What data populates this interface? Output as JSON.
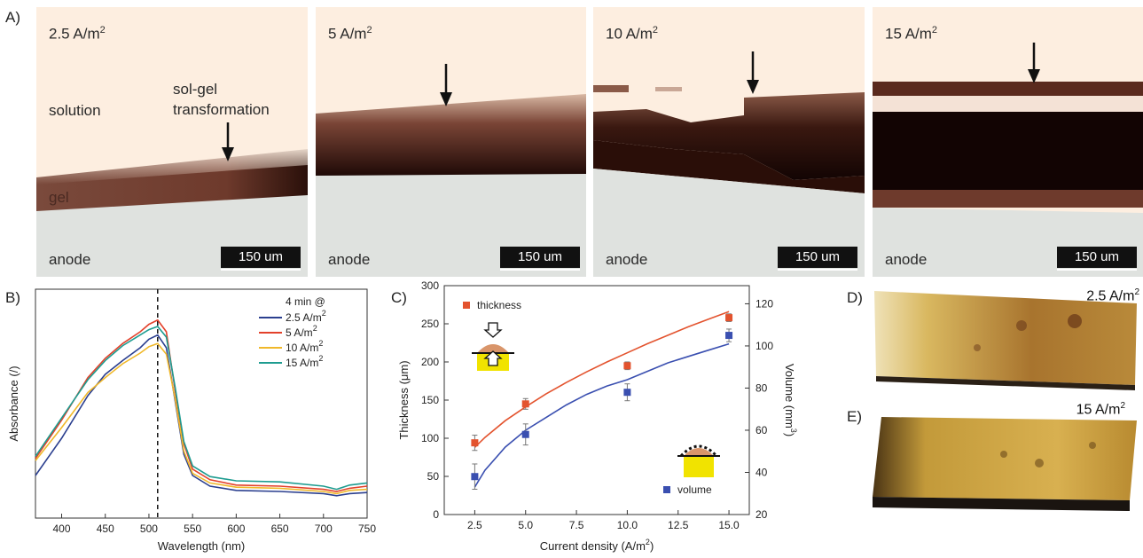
{
  "panels": {
    "A": {
      "letter": "A)",
      "micrographs": [
        {
          "label_main": "2.5 A/m",
          "label_sup": "2",
          "solution": "solution",
          "gel": "gel",
          "anode": "anode",
          "annotation_line1": "sol-gel",
          "annotation_line2": "transformation",
          "scale": "150 um"
        },
        {
          "label_main": "5 A/m",
          "label_sup": "2",
          "anode": "anode",
          "scale": "150 um"
        },
        {
          "label_main": "10 A/m",
          "label_sup": "2",
          "anode": "anode",
          "scale": "150 um"
        },
        {
          "label_main": "15 A/m",
          "label_sup": "2",
          "anode": "anode",
          "scale": "150 um"
        }
      ]
    },
    "B": {
      "letter": "B)"
    },
    "C": {
      "letter": "C)"
    },
    "D": {
      "letter": "D)",
      "label_main": "2.5 A/m",
      "label_sup": "2"
    },
    "E": {
      "letter": "E)",
      "label_main": "15 A/m",
      "label_sup": "2"
    }
  },
  "chart_data": [
    {
      "type": "line",
      "xlabel": "Wavelength (nm)",
      "ylabel": "Absorbance (/)",
      "xlim": [
        370,
        750
      ],
      "xticks": [
        400,
        450,
        500,
        550,
        600,
        650,
        700,
        750
      ],
      "y_ticks_shown": false,
      "vline_x": 510,
      "legend_title": "4 min @",
      "legend_position": "top-right",
      "x": [
        370,
        400,
        430,
        450,
        470,
        490,
        500,
        510,
        520,
        530,
        540,
        550,
        570,
        600,
        650,
        700,
        715,
        730,
        750
      ],
      "series": [
        {
          "name": "2.5 A/m",
          "name_sup": "2",
          "color": "#2b3f8f",
          "values": [
            0.1,
            0.45,
            0.85,
            1.05,
            1.18,
            1.3,
            1.38,
            1.42,
            1.3,
            0.8,
            0.3,
            0.1,
            0.0,
            -0.04,
            -0.05,
            -0.07,
            -0.09,
            -0.07,
            -0.06
          ]
        },
        {
          "name": "5 A/m",
          "name_sup": "2",
          "color": "#e3412b",
          "values": [
            0.26,
            0.62,
            1.02,
            1.2,
            1.34,
            1.45,
            1.52,
            1.56,
            1.45,
            0.9,
            0.4,
            0.16,
            0.06,
            0.01,
            0.0,
            -0.03,
            -0.05,
            -0.02,
            0.0
          ]
        },
        {
          "name": "10 A/m",
          "name_sup": "2",
          "color": "#f0b82a",
          "values": [
            0.24,
            0.55,
            0.88,
            1.02,
            1.15,
            1.25,
            1.31,
            1.34,
            1.24,
            0.82,
            0.33,
            0.12,
            0.03,
            -0.01,
            -0.02,
            -0.05,
            -0.07,
            -0.04,
            -0.03
          ]
        },
        {
          "name": "15 A/m",
          "name_sup": "2",
          "color": "#1e9c90",
          "values": [
            0.28,
            0.64,
            1.0,
            1.18,
            1.32,
            1.42,
            1.47,
            1.5,
            1.4,
            0.93,
            0.42,
            0.19,
            0.09,
            0.05,
            0.04,
            0.0,
            -0.03,
            0.01,
            0.03
          ]
        }
      ]
    },
    {
      "type": "scatter",
      "xlabel": "Current density (A/m",
      "xlabel_sup": "2",
      "xlabel_tail": ")",
      "ylabel_left": "Thickness (",
      "ylabel_left_mu": "μm",
      "ylabel_left_tail": ")",
      "ylabel_right": "Volume (mm",
      "ylabel_right_sup": "3",
      "ylabel_right_tail": ")",
      "xlim": [
        1.0,
        16.0
      ],
      "xticks": [
        "2.5",
        "5.0",
        "7.5",
        "10.0",
        "12.5",
        "15.0"
      ],
      "ylim_left": [
        0,
        300
      ],
      "yticks_left": [
        0,
        50,
        100,
        150,
        200,
        250,
        300
      ],
      "ylim_right": [
        20,
        128.6
      ],
      "yticks_right": [
        20,
        40,
        60,
        80,
        100,
        120
      ],
      "series": [
        {
          "name": "thickness",
          "color": "#e3532e",
          "axis": "left",
          "x": [
            2.5,
            5.0,
            10.0,
            15.0
          ],
          "y": [
            94,
            145,
            195,
            258
          ],
          "err": [
            10,
            7,
            5,
            5
          ],
          "fit_x": [
            2.5,
            3.0,
            4.0,
            5.0,
            6.0,
            7.0,
            8.0,
            9.0,
            10.0,
            11.0,
            12.0,
            13.0,
            14.0,
            15.0
          ],
          "fit_y": [
            88,
            101,
            123,
            141,
            158,
            173,
            187,
            200,
            212,
            224,
            235,
            246,
            256,
            266
          ]
        },
        {
          "name": "volume",
          "color": "#3a4fb0",
          "axis": "right",
          "x": [
            2.5,
            5.0,
            10.0,
            15.0
          ],
          "y": [
            38,
            58,
            78,
            105
          ],
          "err": [
            6,
            5,
            4,
            3
          ],
          "fit_x": [
            2.5,
            3.0,
            4.0,
            5.0,
            6.0,
            7.0,
            8.0,
            9.0,
            10.0,
            11.0,
            12.0,
            13.0,
            14.0,
            15.0
          ],
          "fit_y": [
            33,
            41,
            52,
            60,
            66,
            72,
            77,
            81,
            84,
            88,
            92,
            95,
            98,
            101
          ]
        }
      ]
    }
  ]
}
